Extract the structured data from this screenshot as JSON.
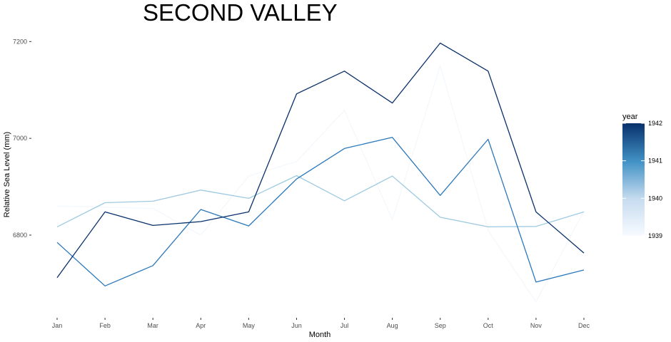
{
  "chart_data": {
    "type": "line",
    "title": "SECOND VALLEY",
    "xlabel": "Month",
    "ylabel": "Relative Sea Level (mm)",
    "categories": [
      "Jan",
      "Feb",
      "Mar",
      "Apr",
      "May",
      "Jun",
      "Jul",
      "Aug",
      "Sep",
      "Oct",
      "Nov",
      "Dec"
    ],
    "y_ticks": [
      6800,
      7000,
      7200
    ],
    "y_tick_labels": [
      "6800",
      "7000",
      "7200"
    ],
    "ylim": [
      6638,
      7227
    ],
    "grid": false,
    "legend": {
      "title": "year",
      "position": "right",
      "type": "colorbar",
      "range": [
        1939,
        1942
      ],
      "ticks": [
        1939,
        1940,
        1941,
        1942
      ],
      "tick_labels": [
        "1939",
        "1940",
        "1941",
        "1942"
      ],
      "color_low": "#f7fbff",
      "color_high": "#08306b"
    },
    "series": [
      {
        "year": 1939,
        "color": "#f3f8fd",
        "values": [
          6860,
          6858,
          6855,
          6800,
          6922,
          6952,
          7058,
          6832,
          7150,
          6810,
          6662,
          6850
        ]
      },
      {
        "year": 1940,
        "color": "#9ecae1",
        "values": [
          6817,
          6867,
          6870,
          6893,
          6876,
          6923,
          6871,
          6922,
          6837,
          6817,
          6818,
          6848
        ]
      },
      {
        "year": 1941,
        "color": "#2b78bb",
        "values": [
          6785,
          6695,
          6737,
          6853,
          6819,
          6916,
          6979,
          7002,
          6882,
          6998,
          6703,
          6728
        ]
      },
      {
        "year": 1942,
        "color": "#08306b",
        "values": [
          6712,
          6848,
          6820,
          6828,
          6848,
          7092,
          7139,
          7073,
          7197,
          7139,
          6848,
          6763
        ]
      }
    ]
  }
}
